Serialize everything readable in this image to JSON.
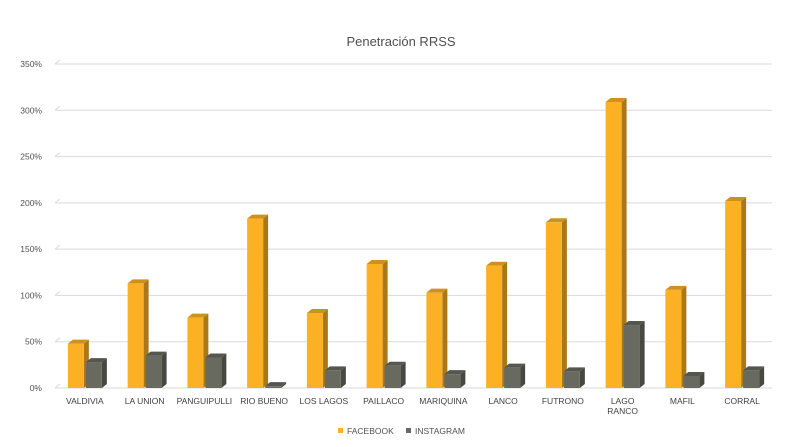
{
  "chart_data": {
    "type": "bar",
    "title": "Penetración RRSS",
    "categories": [
      "VALDIVIA",
      "LA UNION",
      "PANGUIPULLI",
      "RIO BUENO",
      "LOS LAGOS",
      "PAILLACO",
      "MARIQUINA",
      "LANCO",
      "FUTRONO",
      "LAGO RANCO",
      "MAFIL",
      "CORRAL"
    ],
    "y_ticks": [
      "0%",
      "50%",
      "100%",
      "150%",
      "200%",
      "250%",
      "300%",
      "350%"
    ],
    "ylim": [
      0,
      350
    ],
    "grid": true,
    "legend_position": "bottom",
    "series": [
      {
        "name": "FACEBOOK",
        "color": "#FBB123",
        "values": [
          48,
          113,
          76,
          183,
          81,
          134,
          103,
          132,
          179,
          309,
          106,
          202
        ]
      },
      {
        "name": "INSTAGRAM",
        "color": "#686A5F",
        "values": [
          28,
          35,
          33,
          2,
          19,
          24,
          15,
          22,
          18,
          68,
          13,
          19
        ]
      }
    ]
  }
}
